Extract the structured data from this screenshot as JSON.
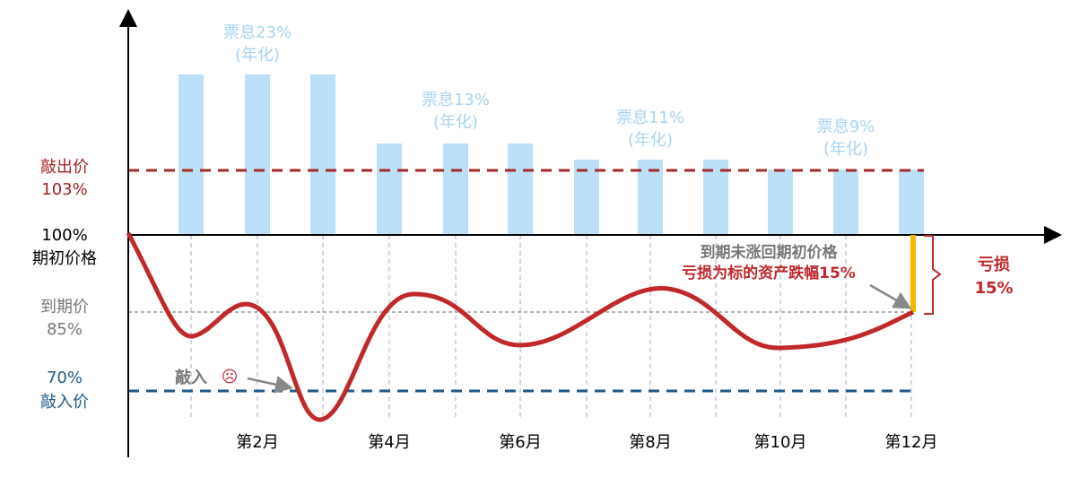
{
  "levels": {
    "knock_out": {
      "label": "敲出价",
      "value": "103%"
    },
    "initial": {
      "value": "100%",
      "label": "期初价格"
    },
    "maturity": {
      "label": "到期价",
      "value": "85%"
    },
    "knock_in": {
      "value": "70%",
      "label": "敲入价"
    }
  },
  "coupons": [
    {
      "label": "票息23%",
      "note": "(年化)"
    },
    {
      "label": "票息13%",
      "note": "(年化)"
    },
    {
      "label": "票息11%",
      "note": "(年化)"
    },
    {
      "label": "票息9%",
      "note": "(年化)"
    }
  ],
  "months": [
    "第2月",
    "第4月",
    "第6月",
    "第8月",
    "第10月",
    "第12月"
  ],
  "annotations": {
    "knock_in_event": "敲入",
    "knock_in_icon": "☹",
    "maturity_note": "到期未涨回期初价格",
    "loss_note": "亏损为标的资产跌幅15%",
    "loss_label": "亏损",
    "loss_value": "15%"
  }
}
